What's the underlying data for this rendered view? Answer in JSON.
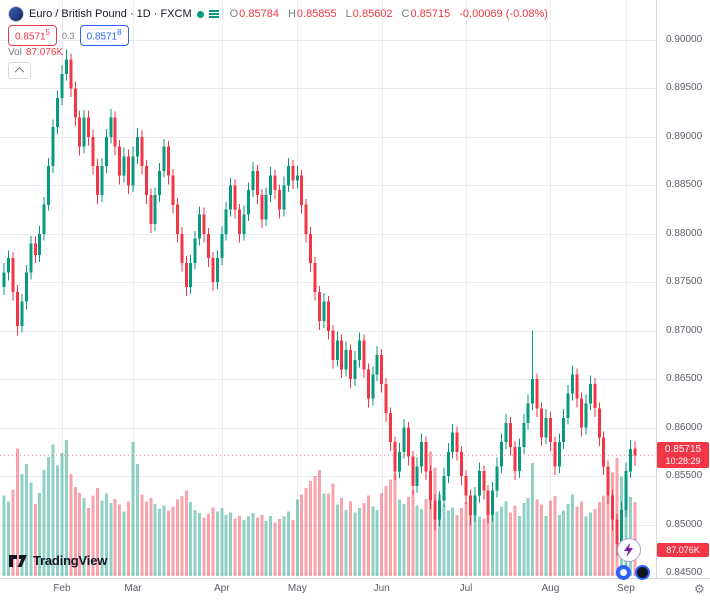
{
  "header": {
    "symbol_line": "Euro / British Pound · 1D · FXCM",
    "ohlc": {
      "o_label": "O",
      "o": "0.85784",
      "h_label": "H",
      "h": "0.85855",
      "l_label": "L",
      "l": "0.85602",
      "c_label": "C",
      "c": "0.85715",
      "change": "-0.00069 (-0.08%)"
    },
    "sell": {
      "main": "0.8571",
      "pip": "5"
    },
    "spread": "0.3",
    "buy": {
      "main": "0.8571",
      "pip": "8"
    },
    "vol_label": "Vol",
    "vol_value": "87.076K"
  },
  "price_label": {
    "value": "0.85715",
    "countdown": "10:28:29"
  },
  "footer": {
    "logo_text": "TradingView"
  },
  "icons": {
    "gear": "⚙",
    "collapse": "chevron-up",
    "flash": "lightning-bolt",
    "status": "dot",
    "legend_menu": "bars"
  },
  "colors": {
    "up": "#089981",
    "down": "#f23645",
    "buy": "#2962ff",
    "volume_up": "rgba(8,153,129,0.45)",
    "volume_down": "rgba(242,54,69,0.45)",
    "grid": "#e9ecf2",
    "axis_text": "#5a5e69",
    "label_bg": "#f23645"
  },
  "chart_data": {
    "type": "candlestick",
    "title": "Euro / British Pound",
    "symbol": "EUR/GBP",
    "timeframe": "1D",
    "exchange": "FXCM",
    "ylim": [
      0.845,
      0.9
    ],
    "price_ticks": [
      "0.90000",
      "0.89500",
      "0.89000",
      "0.88500",
      "0.88000",
      "0.87500",
      "0.87000",
      "0.86500",
      "0.86000",
      "0.85500",
      "0.85000",
      "0.84500"
    ],
    "month_ticks": [
      {
        "label": "Feb",
        "i": 13
      },
      {
        "label": "Mar",
        "i": 29
      },
      {
        "label": "Apr",
        "i": 49
      },
      {
        "label": "May",
        "i": 66
      },
      {
        "label": "Jun",
        "i": 85
      },
      {
        "label": "Jul",
        "i": 104
      },
      {
        "label": "Aug",
        "i": 123
      },
      {
        "label": "Sep",
        "i": 140
      }
    ],
    "last_price": 0.85715,
    "countdown": "10:28:29",
    "last_volume": "87.076K",
    "vol_max": 165,
    "candles": [
      [
        0.8745,
        0.877,
        0.8737,
        0.876,
        95
      ],
      [
        0.876,
        0.8783,
        0.8752,
        0.8775,
        88
      ],
      [
        0.8775,
        0.8781,
        0.8731,
        0.874,
        102
      ],
      [
        0.874,
        0.8747,
        0.8695,
        0.8705,
        150
      ],
      [
        0.8705,
        0.8738,
        0.8698,
        0.873,
        120
      ],
      [
        0.873,
        0.8768,
        0.8722,
        0.876,
        132
      ],
      [
        0.876,
        0.8798,
        0.8753,
        0.879,
        110
      ],
      [
        0.879,
        0.8797,
        0.877,
        0.8778,
        85
      ],
      [
        0.8778,
        0.8808,
        0.8771,
        0.88,
        98
      ],
      [
        0.88,
        0.8838,
        0.8793,
        0.883,
        125
      ],
      [
        0.883,
        0.8878,
        0.8824,
        0.887,
        140
      ],
      [
        0.887,
        0.8918,
        0.8863,
        0.891,
        155
      ],
      [
        0.891,
        0.8948,
        0.8903,
        0.894,
        130
      ],
      [
        0.894,
        0.8974,
        0.8933,
        0.8965,
        145
      ],
      [
        0.8965,
        0.899,
        0.8958,
        0.898,
        160
      ],
      [
        0.898,
        0.8986,
        0.8941,
        0.895,
        120
      ],
      [
        0.895,
        0.8957,
        0.8911,
        0.892,
        105
      ],
      [
        0.892,
        0.8927,
        0.8881,
        0.889,
        98
      ],
      [
        0.889,
        0.8928,
        0.8883,
        0.892,
        92
      ],
      [
        0.892,
        0.8927,
        0.8891,
        0.89,
        80
      ],
      [
        0.89,
        0.8907,
        0.8861,
        0.887,
        95
      ],
      [
        0.887,
        0.8877,
        0.8831,
        0.884,
        104
      ],
      [
        0.884,
        0.8878,
        0.8833,
        0.887,
        89
      ],
      [
        0.887,
        0.8908,
        0.8863,
        0.89,
        97
      ],
      [
        0.89,
        0.8929,
        0.8893,
        0.892,
        86
      ],
      [
        0.892,
        0.8926,
        0.8881,
        0.889,
        91
      ],
      [
        0.889,
        0.8897,
        0.8851,
        0.886,
        84
      ],
      [
        0.886,
        0.8889,
        0.8853,
        0.888,
        76
      ],
      [
        0.888,
        0.8887,
        0.8841,
        0.885,
        88
      ],
      [
        0.885,
        0.889,
        0.8843,
        0.888,
        158
      ],
      [
        0.888,
        0.8909,
        0.8872,
        0.89,
        132
      ],
      [
        0.89,
        0.8907,
        0.8861,
        0.887,
        96
      ],
      [
        0.887,
        0.8876,
        0.8831,
        0.884,
        88
      ],
      [
        0.884,
        0.8847,
        0.8801,
        0.881,
        92
      ],
      [
        0.881,
        0.8848,
        0.8803,
        0.884,
        85
      ],
      [
        0.884,
        0.8873,
        0.8833,
        0.8865,
        79
      ],
      [
        0.8865,
        0.8898,
        0.8858,
        0.889,
        83
      ],
      [
        0.889,
        0.8896,
        0.8851,
        0.886,
        77
      ],
      [
        0.886,
        0.8867,
        0.8821,
        0.883,
        82
      ],
      [
        0.883,
        0.8837,
        0.8791,
        0.88,
        90
      ],
      [
        0.88,
        0.8807,
        0.8761,
        0.877,
        94
      ],
      [
        0.877,
        0.8777,
        0.8736,
        0.8745,
        101
      ],
      [
        0.8745,
        0.8778,
        0.8738,
        0.877,
        87
      ],
      [
        0.877,
        0.8803,
        0.8763,
        0.8795,
        78
      ],
      [
        0.8795,
        0.8828,
        0.8788,
        0.882,
        74
      ],
      [
        0.882,
        0.8827,
        0.8791,
        0.88,
        69
      ],
      [
        0.88,
        0.8806,
        0.8766,
        0.8775,
        73
      ],
      [
        0.8775,
        0.8781,
        0.8741,
        0.875,
        81
      ],
      [
        0.875,
        0.8783,
        0.8743,
        0.8775,
        76
      ],
      [
        0.8775,
        0.8808,
        0.8768,
        0.88,
        80
      ],
      [
        0.88,
        0.8833,
        0.8793,
        0.8825,
        72
      ],
      [
        0.8825,
        0.8858,
        0.8818,
        0.885,
        75
      ],
      [
        0.885,
        0.8856,
        0.8816,
        0.8825,
        68
      ],
      [
        0.8825,
        0.8831,
        0.8791,
        0.88,
        71
      ],
      [
        0.88,
        0.8829,
        0.8793,
        0.882,
        66
      ],
      [
        0.882,
        0.8853,
        0.8813,
        0.8845,
        70
      ],
      [
        0.8845,
        0.8874,
        0.8838,
        0.8865,
        74
      ],
      [
        0.8865,
        0.8871,
        0.8831,
        0.884,
        69
      ],
      [
        0.884,
        0.8846,
        0.8806,
        0.8815,
        72
      ],
      [
        0.8815,
        0.8848,
        0.8808,
        0.884,
        65
      ],
      [
        0.884,
        0.8869,
        0.8833,
        0.886,
        71
      ],
      [
        0.886,
        0.8866,
        0.8836,
        0.8845,
        63
      ],
      [
        0.8845,
        0.8851,
        0.8816,
        0.8825,
        67
      ],
      [
        0.8825,
        0.8859,
        0.8818,
        0.885,
        70
      ],
      [
        0.885,
        0.8878,
        0.8843,
        0.887,
        76
      ],
      [
        0.887,
        0.8876,
        0.8846,
        0.8855,
        66
      ],
      [
        0.8855,
        0.887,
        0.8847,
        0.886,
        90
      ],
      [
        0.886,
        0.8866,
        0.8821,
        0.883,
        96
      ],
      [
        0.883,
        0.8836,
        0.8791,
        0.88,
        104
      ],
      [
        0.88,
        0.8807,
        0.8761,
        0.877,
        112
      ],
      [
        0.877,
        0.8776,
        0.8731,
        0.874,
        118
      ],
      [
        0.874,
        0.8746,
        0.8701,
        0.871,
        125
      ],
      [
        0.871,
        0.8739,
        0.8703,
        0.873,
        97
      ],
      [
        0.873,
        0.8736,
        0.8691,
        0.87,
        97
      ],
      [
        0.87,
        0.8706,
        0.8661,
        0.867,
        109
      ],
      [
        0.867,
        0.8699,
        0.8663,
        0.869,
        84
      ],
      [
        0.869,
        0.8696,
        0.8651,
        0.866,
        92
      ],
      [
        0.866,
        0.8689,
        0.8653,
        0.868,
        78
      ],
      [
        0.868,
        0.8686,
        0.8641,
        0.865,
        88
      ],
      [
        0.865,
        0.8679,
        0.8643,
        0.867,
        75
      ],
      [
        0.867,
        0.8698,
        0.8662,
        0.869,
        80
      ],
      [
        0.869,
        0.8696,
        0.8651,
        0.866,
        86
      ],
      [
        0.866,
        0.8666,
        0.8621,
        0.863,
        95
      ],
      [
        0.863,
        0.8663,
        0.8623,
        0.8655,
        82
      ],
      [
        0.8655,
        0.8684,
        0.8648,
        0.8675,
        78
      ],
      [
        0.8675,
        0.8681,
        0.8636,
        0.8645,
        98
      ],
      [
        0.8645,
        0.8651,
        0.8606,
        0.8615,
        106
      ],
      [
        0.8615,
        0.8621,
        0.8576,
        0.8585,
        114
      ],
      [
        0.8585,
        0.8591,
        0.8546,
        0.8555,
        121
      ],
      [
        0.8555,
        0.8584,
        0.8548,
        0.8575,
        90
      ],
      [
        0.8575,
        0.8609,
        0.8568,
        0.86,
        85
      ],
      [
        0.86,
        0.8606,
        0.8561,
        0.857,
        93
      ],
      [
        0.857,
        0.8576,
        0.8531,
        0.854,
        101
      ],
      [
        0.854,
        0.8569,
        0.8533,
        0.856,
        83
      ],
      [
        0.856,
        0.8594,
        0.8553,
        0.8585,
        79
      ],
      [
        0.8585,
        0.8591,
        0.8546,
        0.8555,
        91
      ],
      [
        0.8555,
        0.8561,
        0.8516,
        0.8525,
        147
      ],
      [
        0.8525,
        0.8531,
        0.8494,
        0.8505,
        128
      ],
      [
        0.8505,
        0.8534,
        0.8498,
        0.8525,
        96
      ],
      [
        0.8525,
        0.8559,
        0.8518,
        0.855,
        84
      ],
      [
        0.855,
        0.8584,
        0.8543,
        0.8575,
        77
      ],
      [
        0.8575,
        0.8604,
        0.8568,
        0.8595,
        81
      ],
      [
        0.8595,
        0.8601,
        0.8566,
        0.8575,
        72
      ],
      [
        0.8575,
        0.8581,
        0.8541,
        0.855,
        80
      ],
      [
        0.855,
        0.8556,
        0.8521,
        0.853,
        87
      ],
      [
        0.853,
        0.8536,
        0.8499,
        0.851,
        95
      ],
      [
        0.851,
        0.8539,
        0.8503,
        0.853,
        74
      ],
      [
        0.853,
        0.8564,
        0.8523,
        0.8555,
        70
      ],
      [
        0.8555,
        0.8561,
        0.8526,
        0.8535,
        68
      ],
      [
        0.8535,
        0.8541,
        0.8501,
        0.851,
        79
      ],
      [
        0.851,
        0.8544,
        0.8503,
        0.8535,
        73
      ],
      [
        0.8535,
        0.8569,
        0.8528,
        0.856,
        76
      ],
      [
        0.856,
        0.8594,
        0.8553,
        0.8585,
        82
      ],
      [
        0.8585,
        0.8614,
        0.8578,
        0.8605,
        88
      ],
      [
        0.8605,
        0.8611,
        0.8571,
        0.858,
        75
      ],
      [
        0.858,
        0.8586,
        0.8546,
        0.8555,
        83
      ],
      [
        0.8555,
        0.8589,
        0.8548,
        0.858,
        71
      ],
      [
        0.858,
        0.8614,
        0.8573,
        0.8605,
        86
      ],
      [
        0.8605,
        0.8634,
        0.8598,
        0.8625,
        92
      ],
      [
        0.8625,
        0.87,
        0.8618,
        0.865,
        133
      ],
      [
        0.865,
        0.8656,
        0.8611,
        0.862,
        90
      ],
      [
        0.862,
        0.8626,
        0.8581,
        0.859,
        84
      ],
      [
        0.859,
        0.8619,
        0.8583,
        0.861,
        71
      ],
      [
        0.861,
        0.8616,
        0.8576,
        0.8585,
        89
      ],
      [
        0.8585,
        0.8591,
        0.8551,
        0.856,
        94
      ],
      [
        0.856,
        0.8594,
        0.8553,
        0.8585,
        72
      ],
      [
        0.8585,
        0.8619,
        0.8578,
        0.861,
        77
      ],
      [
        0.861,
        0.8644,
        0.8603,
        0.8635,
        85
      ],
      [
        0.8635,
        0.8664,
        0.8628,
        0.8655,
        96
      ],
      [
        0.8655,
        0.8661,
        0.8621,
        0.863,
        82
      ],
      [
        0.863,
        0.8636,
        0.8591,
        0.86,
        88
      ],
      [
        0.86,
        0.8634,
        0.8593,
        0.8625,
        70
      ],
      [
        0.8625,
        0.8654,
        0.8618,
        0.8645,
        75
      ],
      [
        0.8645,
        0.8651,
        0.8611,
        0.862,
        79
      ],
      [
        0.862,
        0.8626,
        0.8581,
        0.859,
        87
      ],
      [
        0.859,
        0.8596,
        0.8551,
        0.856,
        95
      ],
      [
        0.856,
        0.8566,
        0.8521,
        0.853,
        108
      ],
      [
        0.853,
        0.8536,
        0.8494,
        0.8505,
        122
      ],
      [
        0.8505,
        0.8511,
        0.8468,
        0.848,
        139
      ],
      [
        0.848,
        0.8524,
        0.8473,
        0.8515,
        117
      ],
      [
        0.8515,
        0.8564,
        0.8508,
        0.8555,
        109
      ],
      [
        0.8555,
        0.8587,
        0.8548,
        0.8578,
        93
      ],
      [
        0.85784,
        0.85855,
        0.85602,
        0.85715,
        87.076
      ]
    ]
  }
}
